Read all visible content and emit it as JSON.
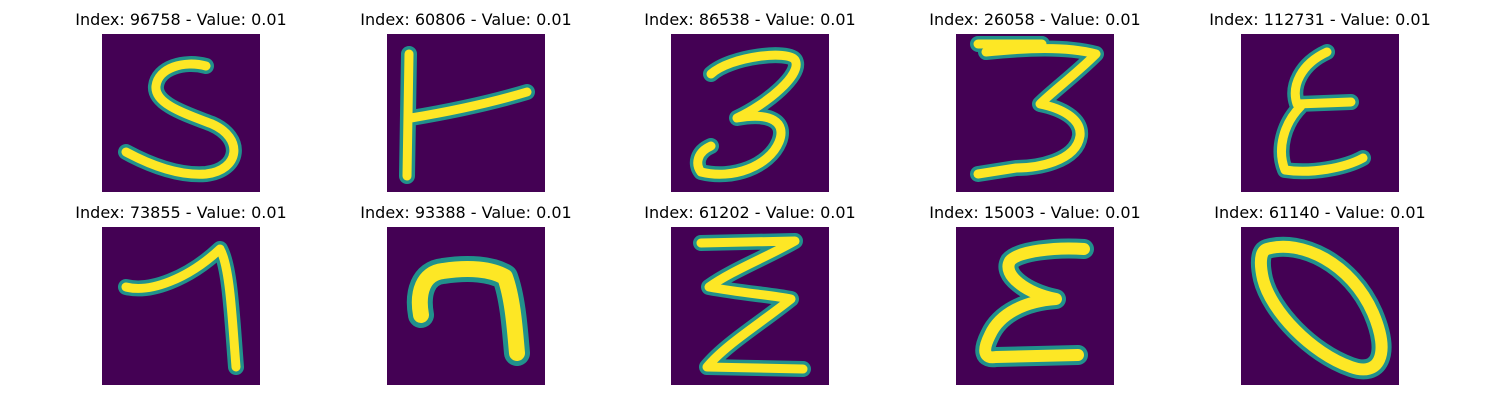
{
  "colors": {
    "background": "#440154",
    "stroke_edge": "#21918c",
    "stroke_core": "#fde725"
  },
  "panels": [
    {
      "title": "Index: 96758 - Value: 0.01",
      "digit_icon": "digit-5-icon"
    },
    {
      "title": "Index: 60806 - Value: 0.01",
      "digit_icon": "digit-h-icon"
    },
    {
      "title": "Index: 86538 - Value: 0.01",
      "digit_icon": "digit-3-icon"
    },
    {
      "title": "Index: 26058 - Value: 0.01",
      "digit_icon": "digit-3-icon"
    },
    {
      "title": "Index: 112731 - Value: 0.01",
      "digit_icon": "digit-epsilon-icon"
    },
    {
      "title": "Index: 73855 - Value: 0.01",
      "digit_icon": "digit-1-icon"
    },
    {
      "title": "Index: 93388 - Value: 0.01",
      "digit_icon": "digit-7-icon"
    },
    {
      "title": "Index: 61202 - Value: 0.01",
      "digit_icon": "digit-z-icon"
    },
    {
      "title": "Index: 15003 - Value: 0.01",
      "digit_icon": "digit-epsilon-icon"
    },
    {
      "title": "Index: 61140 - Value: 0.01",
      "digit_icon": "digit-0-icon"
    }
  ]
}
